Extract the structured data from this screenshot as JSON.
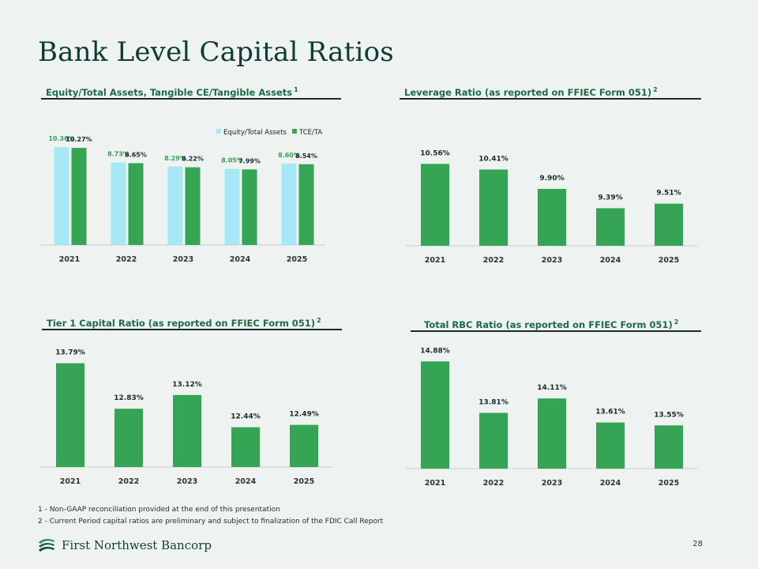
{
  "title": "Bank Level Capital Ratios",
  "charts": [
    {
      "heading": "Equity/Total Assets, Tangible CE/Tangible Assets",
      "note": "1"
    },
    {
      "heading": "Leverage Ratio (as reported on FFIEC Form 051)",
      "note": "2"
    },
    {
      "heading": "Tier 1 Capital Ratio (as reported on FFIEC Form 051)",
      "note": "2"
    },
    {
      "heading": "Total RBC Ratio (as reported on FFIEC Form 051)",
      "note": "2"
    }
  ],
  "chart_data": [
    {
      "type": "bar",
      "title": "Equity/Total Assets, Tangible CE/Tangible Assets",
      "categories": [
        "2021",
        "2022",
        "2023",
        "2024",
        "2025"
      ],
      "series": [
        {
          "name": "Equity/Total Assets",
          "values": [
            10.36,
            8.73,
            8.29,
            8.05,
            8.6
          ],
          "labels": [
            "10.36%",
            "8.73%",
            "8.29%",
            "8.05%",
            "8.60%"
          ],
          "color": "#a6e8f5",
          "label_color": "#3a9e58"
        },
        {
          "name": "TCE/TA",
          "values": [
            10.27,
            8.65,
            8.22,
            7.99,
            8.54
          ],
          "labels": [
            "10.27%",
            "8.65%",
            "8.22%",
            "7.99%",
            "8.54%"
          ],
          "color": "#35a455",
          "label_color": "#1b2a2a"
        }
      ],
      "legend": "top-right",
      "ylim": [
        0,
        11.2
      ]
    },
    {
      "type": "bar",
      "title": "Leverage Ratio (as reported on FFIEC Form 051)",
      "categories": [
        "2021",
        "2022",
        "2023",
        "2024",
        "2025"
      ],
      "values": [
        10.56,
        10.41,
        9.9,
        9.39,
        9.51
      ],
      "labels": [
        "10.56%",
        "10.41%",
        "9.90%",
        "9.39%",
        "9.51%"
      ],
      "color": "#35a455",
      "ylim": [
        8.4,
        10.9
      ]
    },
    {
      "type": "bar",
      "title": "Tier 1 Capital Ratio (as reported on FFIEC Form 051)",
      "categories": [
        "2021",
        "2022",
        "2023",
        "2024",
        "2025"
      ],
      "values": [
        13.79,
        12.83,
        13.12,
        12.44,
        12.49
      ],
      "labels": [
        "13.79%",
        "12.83%",
        "13.12%",
        "12.44%",
        "12.49%"
      ],
      "color": "#35a455",
      "ylim": [
        11.6,
        13.95
      ]
    },
    {
      "type": "bar",
      "title": "Total RBC Ratio (as reported on FFIEC Form 051)",
      "categories": [
        "2021",
        "2022",
        "2023",
        "2024",
        "2025"
      ],
      "values": [
        14.88,
        13.81,
        14.11,
        13.61,
        13.55
      ],
      "labels": [
        "14.88%",
        "13.81%",
        "14.11%",
        "13.61%",
        "13.55%"
      ],
      "color": "#35a455",
      "ylim": [
        12.65,
        15.05
      ]
    }
  ],
  "footnotes": [
    "1 - Non-GAAP reconciliation provided at the end of this presentation",
    "2 - Current Period capital ratios are preliminary and subject to finalization of the FDIC Call Report"
  ],
  "brand": {
    "name": "First Northwest Bancorp",
    "icon": "fnb-logo-icon"
  },
  "page_number": "28",
  "colors": {
    "title": "#0f3b34",
    "heading": "#1d6a45",
    "bar_green": "#35a455",
    "bar_light": "#a6e8f5",
    "background": "#eef3f1"
  }
}
